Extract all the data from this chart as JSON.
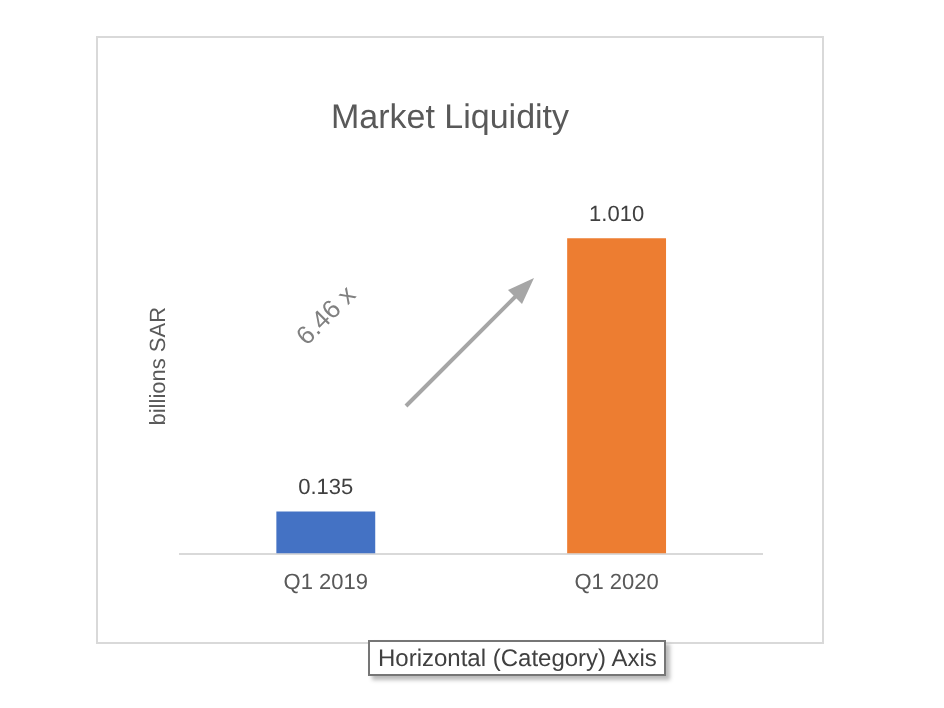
{
  "chart_data": {
    "type": "bar",
    "title": "Market Liquidity",
    "ylabel": "billions SAR",
    "categories": [
      "Q1 2019",
      "Q1 2020"
    ],
    "values": [
      0.135,
      1.01
    ],
    "value_labels": [
      "0.135",
      "1.010"
    ],
    "colors": [
      "#4472c4",
      "#ed7d31"
    ],
    "annotations": [
      "6.46 x",
      "Horizontal (Category) Axis"
    ],
    "grid": false,
    "legend": false
  }
}
